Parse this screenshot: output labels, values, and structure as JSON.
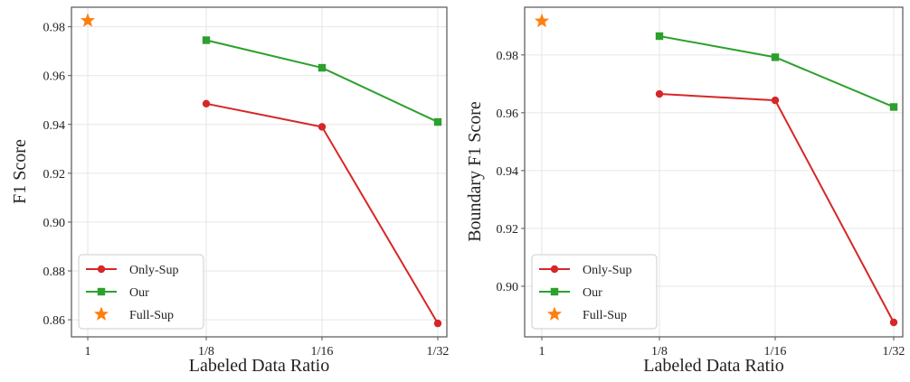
{
  "colors": {
    "only_sup": "#d62728",
    "our": "#2ca02c",
    "full_sup": "#ff7f0e",
    "grid": "#e6e6e6",
    "frame": "#555555"
  },
  "chart_data": [
    {
      "type": "line",
      "xlabel": "Labeled Data Ratio",
      "ylabel": "F1 Score",
      "categories": [
        "1",
        "1/8",
        "1/16",
        "1/32"
      ],
      "ylim": [
        0.853,
        0.988
      ],
      "yticks": [
        0.86,
        0.88,
        0.9,
        0.92,
        0.94,
        0.96,
        0.98
      ],
      "ytick_labels": [
        "0.86",
        "0.88",
        "0.90",
        "0.92",
        "0.94",
        "0.96",
        "0.98"
      ],
      "grid": true,
      "legend_position": "bottom-left",
      "series": [
        {
          "name": "Only-Sup",
          "marker": "circle",
          "values": [
            null,
            0.9485,
            0.939,
            0.8585
          ]
        },
        {
          "name": "Our",
          "marker": "square",
          "values": [
            null,
            0.9745,
            0.9632,
            0.941
          ]
        },
        {
          "name": "Full-Sup",
          "marker": "star",
          "values": [
            0.9825,
            null,
            null,
            null
          ]
        }
      ]
    },
    {
      "type": "line",
      "xlabel": "Labeled Data Ratio",
      "ylabel": "Boundary F1 Score",
      "categories": [
        "1",
        "1/8",
        "1/16",
        "1/32"
      ],
      "ylim": [
        0.8825,
        0.9965
      ],
      "yticks": [
        0.9,
        0.92,
        0.94,
        0.96,
        0.98
      ],
      "ytick_labels": [
        "0.90",
        "0.92",
        "0.94",
        "0.96",
        "0.98"
      ],
      "grid": true,
      "legend_position": "bottom-left",
      "series": [
        {
          "name": "Only-Sup",
          "marker": "circle",
          "values": [
            null,
            0.9665,
            0.9643,
            0.8875
          ]
        },
        {
          "name": "Our",
          "marker": "square",
          "values": [
            null,
            0.9865,
            0.9792,
            0.962
          ]
        },
        {
          "name": "Full-Sup",
          "marker": "star",
          "values": [
            0.9917,
            null,
            null,
            null
          ]
        }
      ]
    }
  ]
}
